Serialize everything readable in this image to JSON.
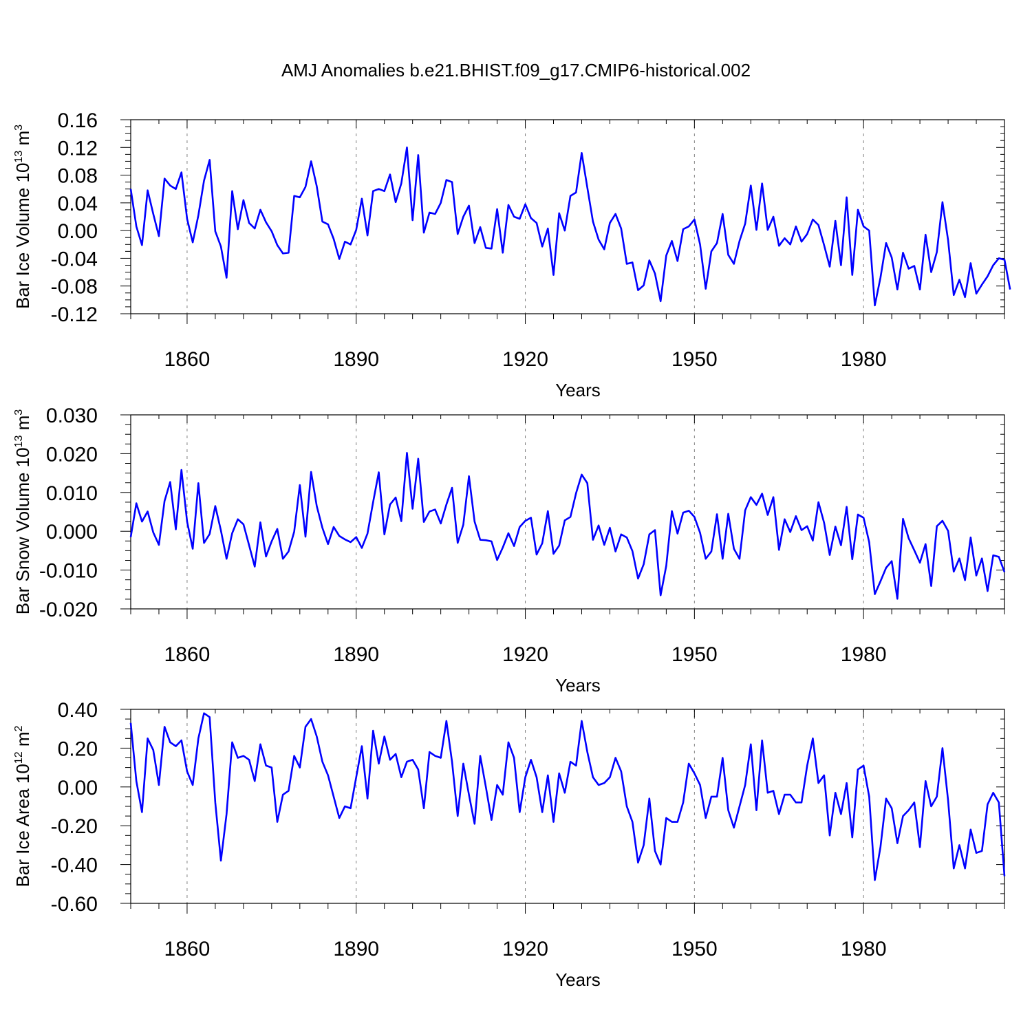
{
  "chart_data": [
    {
      "type": "line",
      "title": "AMJ Anomalies b.e21.BHIST.f09_g17.CMIP6-historical.002",
      "ylabel_main": "Bar Ice Volume 10",
      "ylabel_exp": "13",
      "ylabel_unit": " m",
      "ylabel_unit_exp": "3",
      "xlabel": "Years",
      "xlim": [
        1850,
        2005
      ],
      "ylim": [
        -0.12,
        0.16
      ],
      "yticks": [
        -0.12,
        -0.08,
        -0.04,
        0.0,
        0.04,
        0.08,
        0.12,
        0.16
      ],
      "ytick_labels": [
        "-0.12",
        "-0.08",
        "-0.04",
        "0.00",
        "0.04",
        "0.08",
        "0.12",
        "0.16"
      ],
      "xticks": [
        1860,
        1890,
        1920,
        1950,
        1980
      ],
      "xtick_labels": [
        "1860",
        "1890",
        "1920",
        "1950",
        "1980"
      ],
      "line_color": "#0000ff",
      "x_start": 1850,
      "values": [
        0.06,
        0.006,
        -0.021,
        0.058,
        0.024,
        -0.008,
        0.075,
        0.065,
        0.06,
        0.084,
        0.017,
        -0.017,
        0.022,
        0.072,
        0.102,
        -0.001,
        -0.023,
        -0.068,
        0.057,
        0.002,
        0.044,
        0.011,
        0.003,
        0.03,
        0.012,
        -0.001,
        -0.021,
        -0.033,
        -0.032,
        0.05,
        0.048,
        0.063,
        0.1,
        0.064,
        0.013,
        0.009,
        -0.012,
        -0.041,
        -0.016,
        -0.02,
        0.001,
        0.046,
        -0.007,
        0.057,
        0.06,
        0.057,
        0.081,
        0.041,
        0.068,
        0.12,
        0.015,
        0.109,
        -0.003,
        0.026,
        0.024,
        0.04,
        0.073,
        0.07,
        -0.005,
        0.02,
        0.036,
        -0.018,
        0.005,
        -0.025,
        -0.026,
        0.031,
        -0.032,
        0.037,
        0.02,
        0.017,
        0.038,
        0.018,
        0.011,
        -0.023,
        0.003,
        -0.064,
        0.025,
        0.0,
        0.05,
        0.055,
        0.112,
        0.062,
        0.013,
        -0.013,
        -0.027,
        0.011,
        0.024,
        0.003,
        -0.048,
        -0.046,
        -0.086,
        -0.079,
        -0.043,
        -0.062,
        -0.102,
        -0.036,
        -0.015,
        -0.044,
        0.002,
        0.006,
        0.016,
        -0.02,
        -0.084,
        -0.03,
        -0.018,
        0.024,
        -0.035,
        -0.048,
        -0.015,
        0.01,
        0.065,
        0.001,
        0.068,
        0.001,
        0.02,
        -0.022,
        -0.011,
        -0.02,
        0.006,
        -0.016,
        -0.005,
        0.016,
        0.008,
        -0.021,
        -0.052,
        0.014,
        -0.05,
        0.048,
        -0.064,
        0.03,
        0.006,
        0.0,
        -0.108,
        -0.068,
        -0.018,
        -0.039,
        -0.085,
        -0.032,
        -0.055,
        -0.051,
        -0.085,
        -0.006,
        -0.06,
        -0.031,
        0.041,
        -0.014,
        -0.093,
        -0.071,
        -0.096,
        -0.047,
        -0.091,
        -0.078,
        -0.066,
        -0.05,
        -0.04,
        -0.042,
        -0.085
      ]
    },
    {
      "type": "line",
      "ylabel_main": "Bar Snow Volume 10",
      "ylabel_exp": "13",
      "ylabel_unit": " m",
      "ylabel_unit_exp": "3",
      "xlabel": "Years",
      "xlim": [
        1850,
        2005
      ],
      "ylim": [
        -0.02,
        0.03
      ],
      "yticks": [
        -0.02,
        -0.01,
        0.0,
        0.01,
        0.02,
        0.03
      ],
      "ytick_labels": [
        "-0.020",
        "-0.010",
        "0.000",
        "0.010",
        "0.020",
        "0.030"
      ],
      "xticks": [
        1860,
        1890,
        1920,
        1950,
        1980
      ],
      "xtick_labels": [
        "1860",
        "1890",
        "1920",
        "1950",
        "1980"
      ],
      "line_color": "#0000ff",
      "x_start": 1850,
      "values": [
        -0.0015,
        0.0072,
        0.0025,
        0.0051,
        -0.0003,
        -0.0035,
        0.0078,
        0.0127,
        0.0005,
        0.0158,
        0.0025,
        -0.0045,
        0.0124,
        -0.003,
        -0.0007,
        0.0065,
        0.0002,
        -0.0071,
        -0.0005,
        0.0031,
        0.0018,
        -0.0036,
        -0.0091,
        0.0023,
        -0.0065,
        -0.0026,
        0.0006,
        -0.0071,
        -0.0052,
        -0.0001,
        0.0119,
        -0.0014,
        0.0153,
        0.0065,
        0.0009,
        -0.0033,
        0.0011,
        -0.0012,
        -0.0021,
        -0.0028,
        -0.0015,
        -0.0043,
        -0.0006,
        0.0075,
        0.0152,
        -0.0008,
        0.0069,
        0.0087,
        0.0026,
        0.0202,
        0.0058,
        0.0187,
        0.0024,
        0.0051,
        0.0056,
        0.002,
        0.0069,
        0.0112,
        -0.003,
        0.0017,
        0.0142,
        0.0025,
        -0.0022,
        -0.0023,
        -0.0026,
        -0.0074,
        -0.0042,
        -0.0005,
        -0.0038,
        0.0011,
        0.0027,
        0.0035,
        -0.006,
        -0.0031,
        0.0052,
        -0.0058,
        -0.0037,
        0.0028,
        0.0037,
        0.0098,
        0.0146,
        0.0124,
        -0.0022,
        0.0015,
        -0.0035,
        0.0009,
        -0.0052,
        -0.0008,
        -0.0016,
        -0.0051,
        -0.0122,
        -0.0085,
        -0.0008,
        0.0003,
        -0.0165,
        -0.0089,
        0.0052,
        -0.0006,
        0.0048,
        0.0053,
        0.0037,
        -0.0004,
        -0.0071,
        -0.0052,
        0.0044,
        -0.0071,
        0.0045,
        -0.0045,
        -0.0071,
        0.0054,
        0.0088,
        0.0068,
        0.0097,
        0.0042,
        0.0088,
        -0.0048,
        0.0031,
        -0.0002,
        0.0039,
        0.0003,
        0.0013,
        -0.0024,
        0.0075,
        0.0022,
        -0.0061,
        0.0012,
        -0.0036,
        0.0063,
        -0.0072,
        0.0043,
        0.0035,
        -0.0028,
        -0.0162,
        -0.0129,
        -0.0094,
        -0.0077,
        -0.0174,
        0.0032,
        -0.0018,
        -0.0049,
        -0.0081,
        -0.0033,
        -0.0141,
        0.0013,
        0.0027,
        0.0001,
        -0.0104,
        -0.007,
        -0.0126,
        -0.0016,
        -0.0114,
        -0.007,
        -0.0154,
        -0.0062,
        -0.0066,
        -0.0105
      ]
    },
    {
      "type": "line",
      "ylabel_main": "Bar Ice Area 10",
      "ylabel_exp": "12",
      "ylabel_unit": " m",
      "ylabel_unit_exp": "2",
      "xlabel": "Years",
      "xlim": [
        1850,
        2005
      ],
      "ylim": [
        -0.6,
        0.4
      ],
      "yticks": [
        -0.6,
        -0.4,
        -0.2,
        0.0,
        0.2,
        0.4
      ],
      "ytick_labels": [
        "-0.60",
        "-0.40",
        "-0.20",
        "0.00",
        "0.20",
        "0.40"
      ],
      "xticks": [
        1860,
        1890,
        1920,
        1950,
        1980
      ],
      "xtick_labels": [
        "1860",
        "1890",
        "1920",
        "1950",
        "1980"
      ],
      "line_color": "#0000ff",
      "x_start": 1850,
      "values": [
        0.33,
        0.03,
        -0.13,
        0.25,
        0.19,
        0.01,
        0.31,
        0.23,
        0.21,
        0.24,
        0.08,
        0.01,
        0.25,
        0.38,
        0.36,
        -0.08,
        -0.38,
        -0.14,
        0.23,
        0.15,
        0.16,
        0.14,
        0.03,
        0.22,
        0.11,
        0.1,
        -0.18,
        -0.04,
        -0.02,
        0.16,
        0.1,
        0.31,
        0.35,
        0.26,
        0.13,
        0.06,
        -0.05,
        -0.16,
        -0.1,
        -0.11,
        0.05,
        0.21,
        -0.06,
        0.29,
        0.12,
        0.26,
        0.14,
        0.17,
        0.05,
        0.13,
        0.14,
        0.09,
        -0.11,
        0.18,
        0.16,
        0.15,
        0.34,
        0.13,
        -0.15,
        0.12,
        -0.04,
        -0.19,
        0.16,
        0.0,
        -0.17,
        0.01,
        -0.04,
        0.23,
        0.15,
        -0.13,
        0.05,
        0.14,
        0.05,
        -0.13,
        0.06,
        -0.18,
        0.07,
        -0.03,
        0.13,
        0.11,
        0.34,
        0.18,
        0.05,
        0.01,
        0.02,
        0.05,
        0.15,
        0.08,
        -0.1,
        -0.18,
        -0.39,
        -0.3,
        -0.06,
        -0.33,
        -0.4,
        -0.16,
        -0.18,
        -0.18,
        -0.08,
        0.12,
        0.07,
        0.01,
        -0.16,
        -0.05,
        -0.05,
        0.15,
        -0.12,
        -0.21,
        -0.1,
        0.01,
        0.22,
        -0.12,
        0.24,
        -0.03,
        -0.02,
        -0.14,
        -0.04,
        -0.04,
        -0.08,
        -0.08,
        0.11,
        0.25,
        0.02,
        0.06,
        -0.25,
        -0.03,
        -0.14,
        0.02,
        -0.26,
        0.09,
        0.11,
        -0.05,
        -0.48,
        -0.31,
        -0.06,
        -0.11,
        -0.29,
        -0.15,
        -0.12,
        -0.08,
        -0.31,
        0.03,
        -0.1,
        -0.05,
        0.2,
        -0.07,
        -0.42,
        -0.3,
        -0.42,
        -0.22,
        -0.34,
        -0.33,
        -0.09,
        -0.03,
        -0.08,
        -0.46
      ]
    }
  ]
}
